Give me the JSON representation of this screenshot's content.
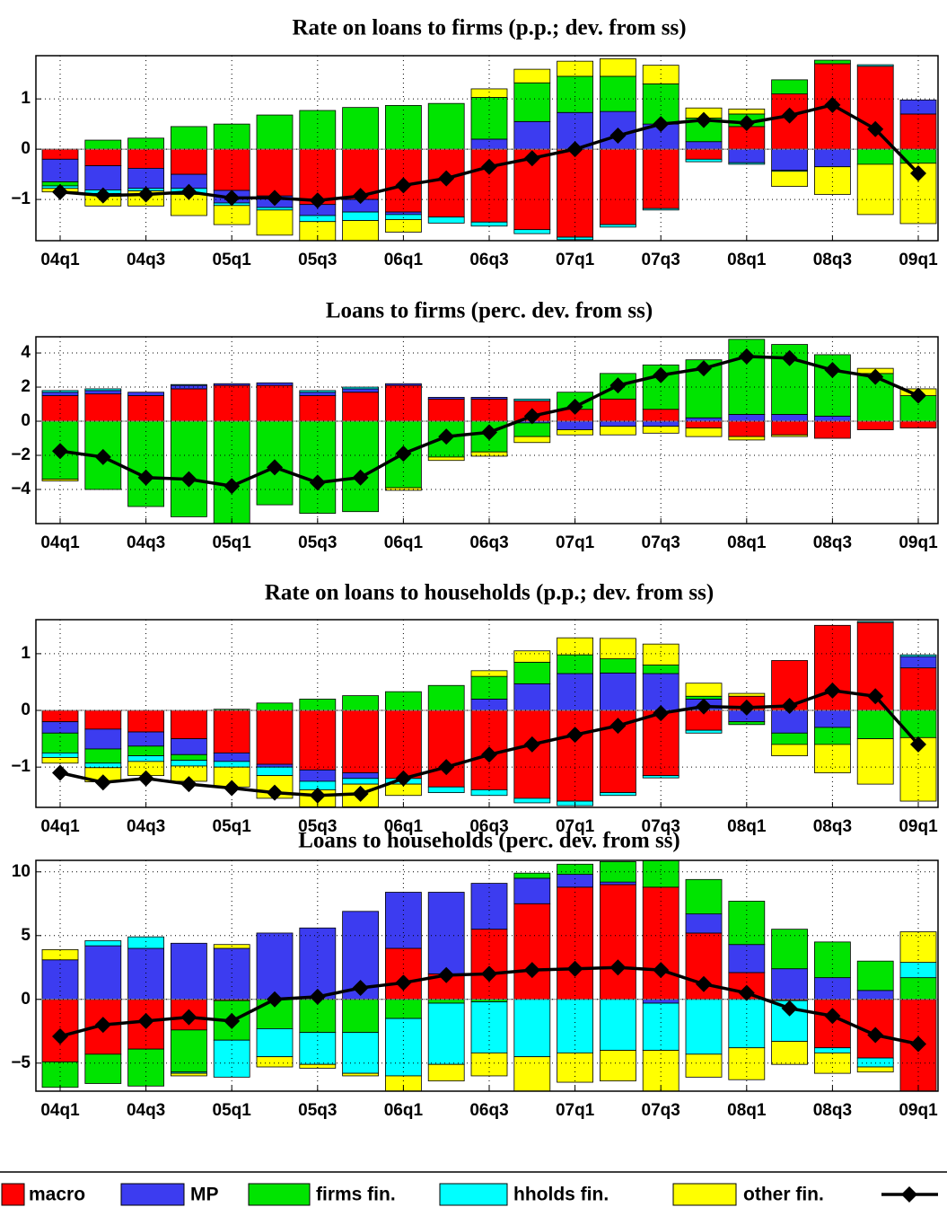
{
  "chart_data": [
    {
      "type": "bar",
      "stacked": true,
      "title": "Rate on loans to firms (p.p.; dev. from ss)",
      "categories": [
        "04q1",
        null,
        "04q3",
        null,
        "05q1",
        null,
        "05q3",
        null,
        "06q1",
        null,
        "06q3",
        null,
        "07q1",
        null,
        "07q3",
        null,
        "08q1",
        null,
        "08q3",
        null,
        "09q1"
      ],
      "ylim": [
        -1.82,
        1.86
      ],
      "yticks": [
        {
          "value": -1,
          "label": "−1"
        },
        0,
        1
      ],
      "grid": true,
      "series": [
        {
          "name": "macro",
          "color": "#ff0000",
          "values": [
            -0.2,
            -0.33,
            -0.38,
            -0.5,
            -0.82,
            -0.93,
            -1.1,
            -1.0,
            -1.25,
            -1.35,
            -1.45,
            -1.6,
            -1.75,
            -1.5,
            -1.18,
            -0.2,
            0.45,
            1.1,
            1.7,
            1.65,
            0.7
          ]
        },
        {
          "name": "MP",
          "color": "#3c3cf0",
          "values": [
            -0.45,
            -0.48,
            -0.4,
            -0.28,
            -0.25,
            -0.23,
            -0.22,
            -0.25,
            -0.05,
            0,
            0.2,
            0.55,
            0.73,
            0.75,
            0.5,
            0.15,
            -0.27,
            -0.42,
            -0.35,
            0,
            0.28
          ]
        },
        {
          "name": "firms fin.",
          "color": "#00e400",
          "values": [
            -0.08,
            0.18,
            0.22,
            0.45,
            0.5,
            0.68,
            0.77,
            0.83,
            0.87,
            0.91,
            0.83,
            0.77,
            0.72,
            0.7,
            0.8,
            0.47,
            0.25,
            0.28,
            0.07,
            -0.3,
            -0.28
          ]
        },
        {
          "name": "hholds fin.",
          "color": "#00ffff",
          "values": [
            -0.05,
            -0.07,
            -0.05,
            -0.12,
            -0.05,
            -0.05,
            -0.12,
            -0.17,
            -0.1,
            -0.12,
            -0.08,
            -0.08,
            -0.05,
            -0.05,
            -0.03,
            -0.05,
            -0.03,
            -0.02,
            0,
            0.03,
            0
          ]
        },
        {
          "name": "other fin.",
          "color": "#ffff00",
          "values": [
            -0.07,
            -0.25,
            -0.3,
            -0.42,
            -0.38,
            -0.5,
            -0.4,
            -0.4,
            -0.25,
            0,
            0.17,
            0.27,
            0.3,
            0.35,
            0.37,
            0.2,
            0.1,
            -0.3,
            -0.55,
            -1.0,
            -1.2
          ]
        },
        {
          "type": "line",
          "color": "#000000",
          "values": [
            -0.85,
            -0.92,
            -0.9,
            -0.85,
            -0.97,
            -0.97,
            -1.02,
            -0.93,
            -0.72,
            -0.58,
            -0.35,
            -0.18,
            0.0,
            0.27,
            0.5,
            0.58,
            0.52,
            0.67,
            0.88,
            0.4,
            -0.48
          ]
        }
      ]
    },
    {
      "type": "bar",
      "stacked": true,
      "title": "Loans to firms (perc. dev. from ss)",
      "categories": [
        "04q1",
        null,
        "04q3",
        null,
        "05q1",
        null,
        "05q3",
        null,
        "06q1",
        null,
        "06q3",
        null,
        "07q1",
        null,
        "07q3",
        null,
        "08q1",
        null,
        "08q3",
        null,
        "09q1"
      ],
      "ylim": [
        -6,
        4.95
      ],
      "yticks": [
        {
          "value": -4,
          "label": "−4"
        },
        {
          "value": -2,
          "label": "−2"
        },
        0,
        2,
        4
      ],
      "grid": true,
      "series": [
        {
          "name": "macro",
          "color": "#ff0000",
          "values": [
            1.5,
            1.6,
            1.5,
            1.9,
            2.1,
            2.1,
            1.5,
            1.7,
            2.1,
            1.3,
            1.3,
            1.2,
            0.7,
            1.3,
            0.7,
            -0.4,
            -0.9,
            -0.8,
            -1.0,
            -0.5,
            -0.4
          ]
        },
        {
          "name": "MP",
          "color": "#3c3cf0",
          "values": [
            0.2,
            0.2,
            0.2,
            0.2,
            0.1,
            0.15,
            0.2,
            0.2,
            0.1,
            0.1,
            0.1,
            -0.1,
            -0.5,
            -0.3,
            -0.3,
            0.2,
            0.4,
            0.4,
            0.3,
            0,
            0
          ]
        },
        {
          "name": "firms fin.",
          "color": "#00e400",
          "values": [
            -3.4,
            -4.0,
            -5.0,
            -5.6,
            -6.2,
            -4.9,
            -5.4,
            -5.3,
            -3.9,
            -2.1,
            -1.8,
            -0.8,
            1.0,
            1.5,
            2.6,
            3.4,
            4.4,
            4.1,
            3.6,
            2.8,
            1.5
          ]
        },
        {
          "name": "hholds fin.",
          "color": "#00ffff",
          "values": [
            0.1,
            0.1,
            0,
            0.05,
            0,
            0,
            0.1,
            0.1,
            0,
            0,
            0,
            0.1,
            0,
            0,
            0,
            0,
            0,
            0,
            0,
            0,
            0
          ]
        },
        {
          "name": "other fin.",
          "color": "#ffff00",
          "values": [
            -0.1,
            0,
            0,
            0,
            0,
            0,
            0,
            0,
            -0.15,
            -0.2,
            -0.25,
            -0.35,
            -0.3,
            -0.5,
            -0.4,
            -0.5,
            -0.2,
            -0.1,
            0,
            0.3,
            0.4
          ]
        },
        {
          "type": "line",
          "color": "#000000",
          "values": [
            -1.75,
            -2.1,
            -3.3,
            -3.4,
            -3.8,
            -2.7,
            -3.6,
            -3.3,
            -1.9,
            -0.9,
            -0.65,
            0.3,
            0.85,
            2.1,
            2.7,
            3.1,
            3.8,
            3.7,
            3.0,
            2.6,
            1.5
          ]
        }
      ]
    },
    {
      "type": "bar",
      "stacked": true,
      "title": "Rate on loans to households (p.p.; dev. from ss)",
      "categories": [
        "04q1",
        null,
        "04q3",
        null,
        "05q1",
        null,
        "05q3",
        null,
        "06q1",
        null,
        "06q3",
        null,
        "07q1",
        null,
        "07q3",
        null,
        "08q1",
        null,
        "08q3",
        null,
        "09q1"
      ],
      "ylim": [
        -1.71,
        1.6
      ],
      "yticks": [
        {
          "value": -1,
          "label": "−1"
        },
        0,
        1
      ],
      "grid": true,
      "series": [
        {
          "name": "macro",
          "color": "#ff0000",
          "values": [
            -0.2,
            -0.33,
            -0.38,
            -0.5,
            -0.75,
            -0.95,
            -1.05,
            -1.1,
            -1.2,
            -1.35,
            -1.4,
            -1.55,
            -1.6,
            -1.45,
            -1.15,
            -0.35,
            0.25,
            0.88,
            1.5,
            1.55,
            0.75
          ]
        },
        {
          "name": "MP",
          "color": "#3c3cf0",
          "values": [
            -0.2,
            -0.35,
            -0.25,
            -0.28,
            -0.15,
            -0.05,
            -0.2,
            -0.1,
            0,
            0,
            0.2,
            0.47,
            0.65,
            0.66,
            0.65,
            0.2,
            -0.2,
            -0.4,
            -0.3,
            0,
            0.2
          ]
        },
        {
          "name": "firms fin.",
          "color": "#00e400",
          "values": [
            -0.35,
            -0.25,
            -0.17,
            -0.1,
            0.02,
            0.13,
            0.2,
            0.26,
            0.33,
            0.44,
            0.4,
            0.38,
            0.33,
            0.25,
            0.15,
            0.05,
            -0.05,
            -0.2,
            -0.3,
            -0.5,
            -0.48
          ]
        },
        {
          "name": "hholds fin.",
          "color": "#00ffff",
          "values": [
            -0.08,
            -0.08,
            -0.1,
            -0.1,
            -0.1,
            -0.15,
            -0.15,
            -0.1,
            -0.1,
            -0.1,
            -0.1,
            -0.08,
            -0.08,
            -0.05,
            -0.04,
            -0.05,
            0,
            0,
            0,
            0.02,
            0.03
          ]
        },
        {
          "name": "other fin.",
          "color": "#ffff00",
          "values": [
            -0.1,
            -0.25,
            -0.25,
            -0.27,
            -0.35,
            -0.4,
            -0.3,
            -0.4,
            -0.2,
            0,
            0.1,
            0.2,
            0.3,
            0.36,
            0.37,
            0.23,
            0.05,
            -0.2,
            -0.5,
            -0.8,
            -1.12
          ]
        },
        {
          "type": "line",
          "color": "#000000",
          "values": [
            -1.1,
            -1.27,
            -1.2,
            -1.3,
            -1.37,
            -1.45,
            -1.5,
            -1.47,
            -1.2,
            -1.0,
            -0.78,
            -0.6,
            -0.43,
            -0.27,
            -0.05,
            0.07,
            0.05,
            0.08,
            0.35,
            0.25,
            -0.6
          ]
        }
      ]
    },
    {
      "type": "bar",
      "stacked": true,
      "title": "Loans to households (perc. dev. from ss)",
      "categories": [
        "04q1",
        null,
        "04q3",
        null,
        "05q1",
        null,
        "05q3",
        null,
        "06q1",
        null,
        "06q3",
        null,
        "07q1",
        null,
        "07q3",
        null,
        "08q1",
        null,
        "08q3",
        null,
        "09q1"
      ],
      "ylim": [
        -7.2,
        10.9
      ],
      "yticks": [
        {
          "value": -5,
          "label": "−5"
        },
        0,
        5,
        10
      ],
      "grid": true,
      "series": [
        {
          "name": "macro",
          "color": "#ff0000",
          "values": [
            -4.9,
            -4.3,
            -3.9,
            -2.4,
            -0.1,
            0,
            0,
            0,
            4.0,
            2.0,
            5.5,
            7.5,
            8.8,
            9.0,
            8.8,
            5.2,
            2.1,
            -0.1,
            -3.8,
            -4.6,
            -7.5
          ]
        },
        {
          "name": "MP",
          "color": "#3c3cf0",
          "values": [
            3.1,
            4.2,
            4.0,
            4.4,
            4.0,
            5.2,
            5.6,
            6.9,
            4.4,
            6.4,
            3.6,
            2.0,
            1.0,
            0.2,
            -0.3,
            1.5,
            2.2,
            2.4,
            1.7,
            0.7,
            0
          ]
        },
        {
          "name": "firms fin.",
          "color": "#00e400",
          "values": [
            -2.0,
            -2.3,
            -2.9,
            -3.3,
            -3.1,
            -2.3,
            -2.6,
            -2.6,
            -1.5,
            -0.3,
            -0.2,
            0.4,
            0.8,
            1.6,
            2.1,
            2.7,
            3.4,
            3.1,
            2.8,
            2.3,
            1.7
          ]
        },
        {
          "name": "hholds fin.",
          "color": "#00ffff",
          "values": [
            0,
            0.4,
            0.9,
            -0.1,
            -2.9,
            -2.2,
            -2.5,
            -3.2,
            -4.5,
            -4.8,
            -4.0,
            -4.5,
            -4.2,
            -4.0,
            -3.7,
            -4.3,
            -3.8,
            -3.2,
            -0.4,
            -0.7,
            1.2
          ]
        },
        {
          "name": "other fin.",
          "color": "#ffff00",
          "values": [
            0.8,
            0,
            0,
            -0.2,
            0.3,
            -0.8,
            -0.3,
            -0.2,
            -1.2,
            -1.3,
            -1.8,
            -2.8,
            -2.3,
            -2.4,
            -3.2,
            -1.8,
            -2.5,
            -1.8,
            -1.6,
            -0.4,
            2.4
          ]
        },
        {
          "type": "line",
          "color": "#000000",
          "values": [
            -2.9,
            -2.0,
            -1.7,
            -1.4,
            -1.7,
            0.0,
            0.2,
            0.9,
            1.3,
            1.9,
            2.0,
            2.3,
            2.4,
            2.5,
            2.3,
            1.2,
            0.5,
            -0.7,
            -1.3,
            -2.8,
            -3.5
          ]
        }
      ]
    }
  ]
}
